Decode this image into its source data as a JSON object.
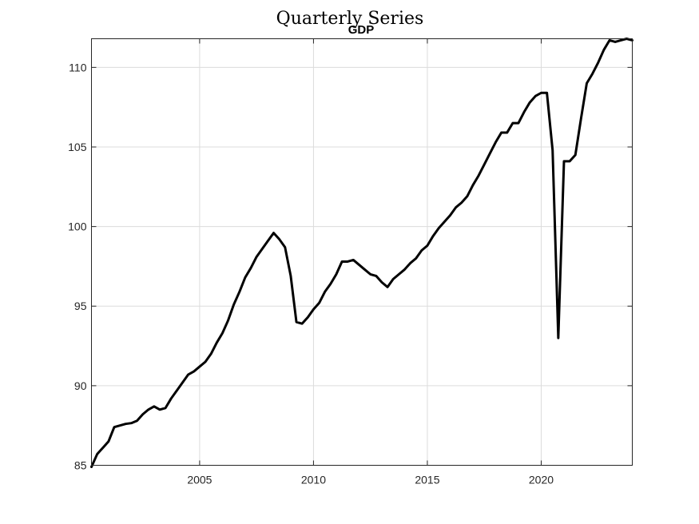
{
  "figure": {
    "suptitle": "Quarterly Series"
  },
  "chart_data": {
    "type": "line",
    "title": "GDP",
    "xlabel": "",
    "ylabel": "",
    "xlim": [
      2000.25,
      2024.0
    ],
    "ylim": [
      85.0,
      111.8
    ],
    "xticks": [
      2005,
      2010,
      2015,
      2020
    ],
    "yticks": [
      85,
      90,
      95,
      100,
      105,
      110
    ],
    "grid": true,
    "legend": "none",
    "line_color": "#000000",
    "series": [
      {
        "x": [
          2000.25,
          2000.5,
          2000.75,
          2001.0,
          2001.25,
          2001.5,
          2001.75,
          2002.0,
          2002.25,
          2002.5,
          2002.75,
          2003.0,
          2003.25,
          2003.5,
          2003.75,
          2004.0,
          2004.25,
          2004.5,
          2004.75,
          2005.0,
          2005.25,
          2005.5,
          2005.75,
          2006.0,
          2006.25,
          2006.5,
          2006.75,
          2007.0,
          2007.25,
          2007.5,
          2007.75,
          2008.0,
          2008.25,
          2008.5,
          2008.75,
          2009.0,
          2009.25,
          2009.5,
          2009.75,
          2010.0,
          2010.25,
          2010.5,
          2010.75,
          2011.0,
          2011.25,
          2011.5,
          2011.75,
          2012.0,
          2012.25,
          2012.5,
          2012.75,
          2013.0,
          2013.25,
          2013.5,
          2013.75,
          2014.0,
          2014.25,
          2014.5,
          2014.75,
          2015.0,
          2015.25,
          2015.5,
          2015.75,
          2016.0,
          2016.25,
          2016.5,
          2016.75,
          2017.0,
          2017.25,
          2017.5,
          2017.75,
          2018.0,
          2018.25,
          2018.5,
          2018.75,
          2019.0,
          2019.25,
          2019.5,
          2019.75,
          2020.0,
          2020.25,
          2020.5,
          2020.75,
          2021.0,
          2021.25,
          2021.5,
          2021.75,
          2022.0,
          2022.25,
          2022.5,
          2022.75,
          2023.0,
          2023.25,
          2023.5,
          2023.75,
          2024.0
        ],
        "values": [
          84.9,
          85.7,
          86.1,
          86.5,
          87.4,
          87.5,
          87.6,
          87.65,
          87.8,
          88.2,
          88.5,
          88.7,
          88.5,
          88.6,
          89.2,
          89.7,
          90.2,
          90.7,
          90.9,
          91.2,
          91.5,
          92.0,
          92.7,
          93.3,
          94.1,
          95.1,
          95.9,
          96.8,
          97.4,
          98.1,
          98.6,
          99.1,
          99.6,
          99.2,
          98.7,
          96.9,
          94.0,
          93.9,
          94.3,
          94.8,
          95.2,
          95.9,
          96.4,
          97.0,
          97.8,
          97.8,
          97.9,
          97.6,
          97.3,
          97.0,
          96.9,
          96.5,
          96.2,
          96.7,
          97.0,
          97.3,
          97.7,
          98.0,
          98.5,
          98.8,
          99.4,
          99.9,
          100.3,
          100.7,
          101.2,
          101.5,
          101.9,
          102.6,
          103.2,
          103.9,
          104.6,
          105.3,
          105.9,
          105.9,
          106.5,
          106.5,
          107.2,
          107.8,
          108.2,
          108.4,
          108.4,
          104.8,
          93.0,
          104.1,
          104.1,
          104.5,
          106.8,
          109.0,
          109.6,
          110.3,
          111.1,
          111.7,
          111.6,
          111.7,
          111.8,
          111.7
        ]
      }
    ]
  }
}
